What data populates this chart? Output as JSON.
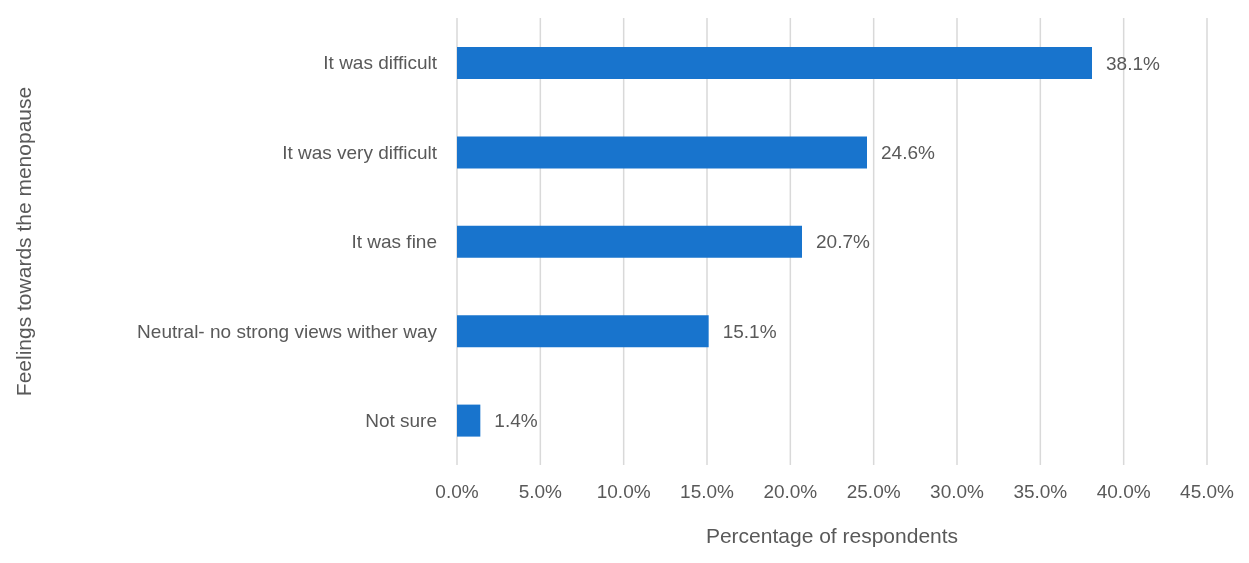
{
  "chart_data": {
    "type": "bar",
    "orientation": "horizontal",
    "xlabel": "Percentage of respondents",
    "ylabel": "Feelings towards the menopause",
    "categories": [
      "It was difficult",
      "It was very difficult",
      "It was fine",
      "Neutral- no strong views wither way",
      "Not sure"
    ],
    "values": [
      38.1,
      24.6,
      20.7,
      15.1,
      1.4
    ],
    "value_labels": [
      "38.1%",
      "24.6%",
      "20.7%",
      "15.1%",
      "1.4%"
    ],
    "color": "#1874cd",
    "xlim": [
      0,
      45
    ],
    "xticks": [
      {
        "value": 0,
        "label": "0.0%"
      },
      {
        "value": 5,
        "label": "5.0%"
      },
      {
        "value": 10,
        "label": "10.0%"
      },
      {
        "value": 15,
        "label": "15.0%"
      },
      {
        "value": 20,
        "label": "20.0%"
      },
      {
        "value": 25,
        "label": "25.0%"
      },
      {
        "value": 30,
        "label": "30.0%"
      },
      {
        "value": 35,
        "label": "35.0%"
      },
      {
        "value": 40,
        "label": "40.0%"
      },
      {
        "value": 45,
        "label": "45.0%"
      }
    ],
    "grid": "x"
  }
}
